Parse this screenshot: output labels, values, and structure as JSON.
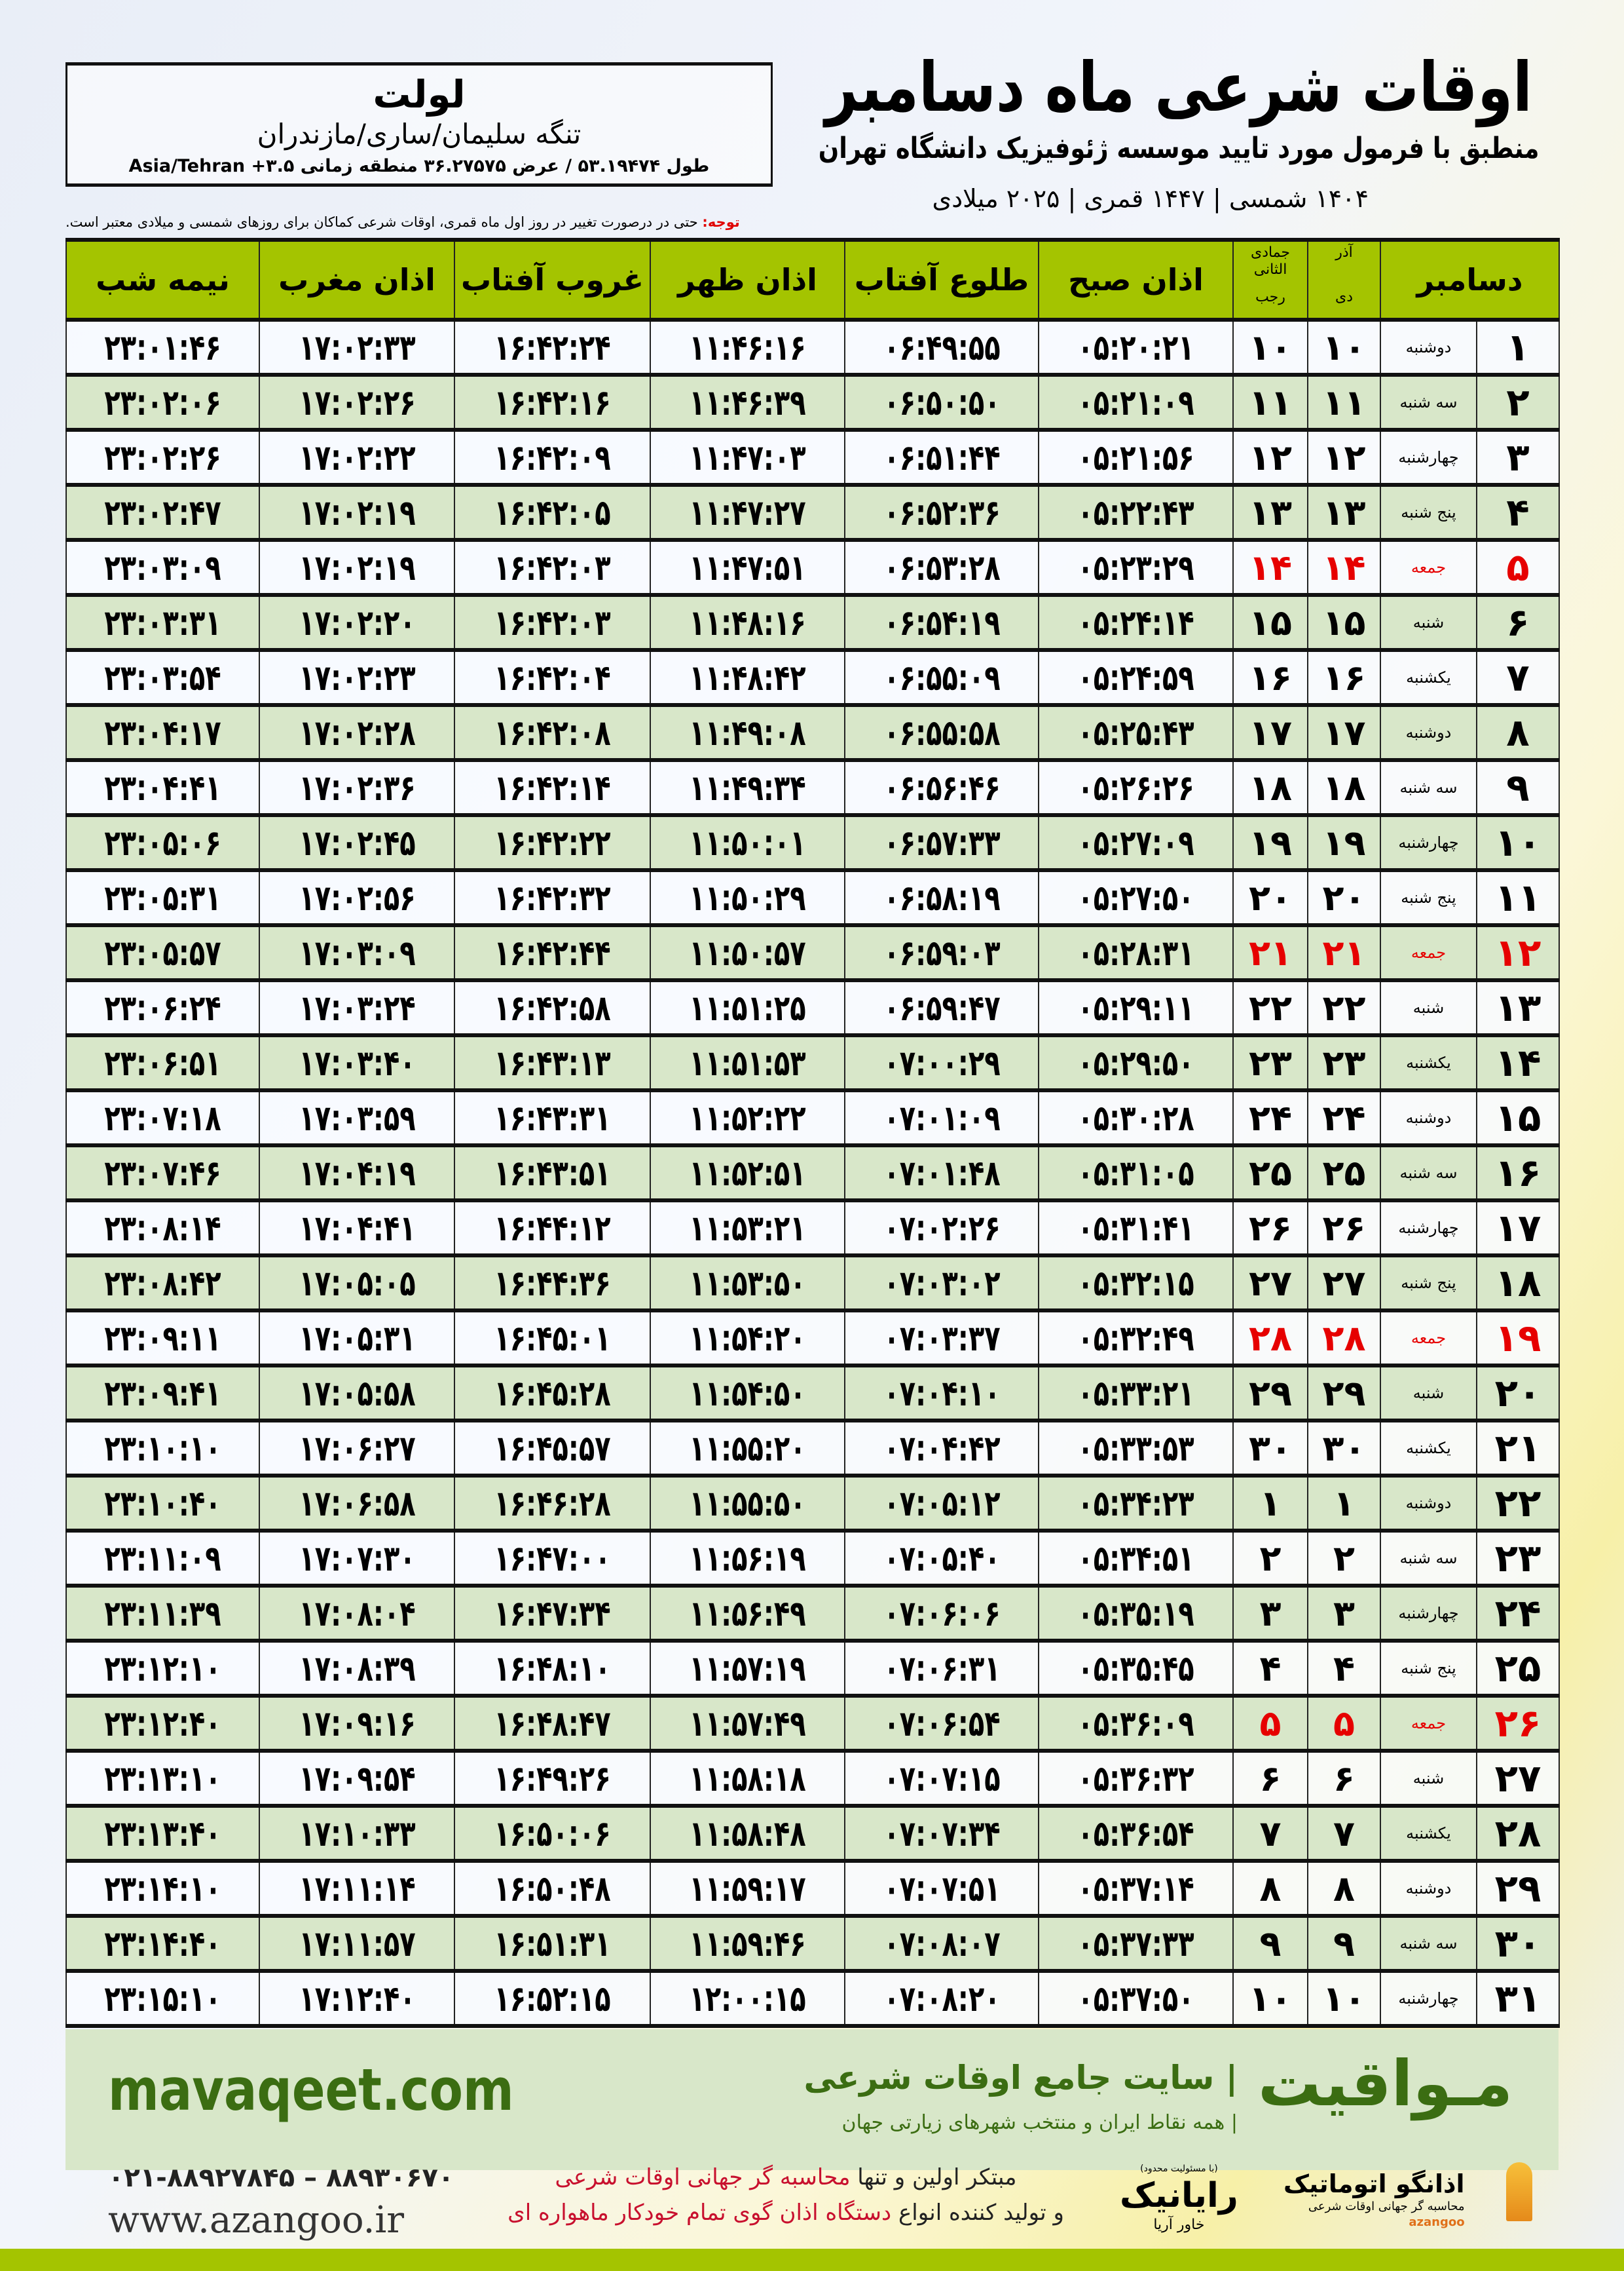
{
  "header": {
    "title": "اوقات شرعی ماه دسامبر",
    "subtitle": "منطبق با فرمول مورد تایید موسسه ژئوفیزیک دانشگاه تهران",
    "dateline": "۱۴۰۴ شمسی | ۱۴۴۷ قمری | ۲۰۲۵ میلادی"
  },
  "location": {
    "name": "لولت",
    "region": "تنگه سلیمان/ساری/مازندران",
    "coords": "طول ۵۳.۱۹۴۷۴ / عرض ۳۶.۲۷۵۷۵ منطقه زمانی Asia/Tehran +۳.۵"
  },
  "note": {
    "label": "توجه:",
    "text": " حتی در درصورت تغییر در روز اول ماه قمری، اوقات شرعی کماکان برای روزهای شمسی و میلادی معتبر است."
  },
  "colors": {
    "header_green": "#a4c400",
    "row_green": "#d8e7c9",
    "friday_red": "#e60000",
    "brand_green": "#3b6d12"
  },
  "table": {
    "columns": {
      "nimeh": "نیمه شب",
      "maghrib": "اذان مغرب",
      "ghorub": "غروب آفتاب",
      "zohr": "اذان ظهر",
      "tolu": "طلوع آفتاب",
      "sobh": "اذان صبح",
      "hijri_top": "جمادی الثانی",
      "hijri_bottom": "رجب",
      "shamsi_top": "آذر",
      "shamsi_bottom": "دی",
      "month": "دسامبر"
    },
    "rows": [
      {
        "d": "۱",
        "w": "دوشنبه",
        "sh": "۱۰",
        "hj": "۱۰",
        "sobh": "۰۵:۲۰:۲۱",
        "tolu": "۰۶:۴۹:۵۵",
        "zohr": "۱۱:۴۶:۱۶",
        "ghorub": "۱۶:۴۲:۲۴",
        "maghrib": "۱۷:۰۲:۳۳",
        "nimeh": "۲۳:۰۱:۴۶",
        "fri": false
      },
      {
        "d": "۲",
        "w": "سه شنبه",
        "sh": "۱۱",
        "hj": "۱۱",
        "sobh": "۰۵:۲۱:۰۹",
        "tolu": "۰۶:۵۰:۵۰",
        "zohr": "۱۱:۴۶:۳۹",
        "ghorub": "۱۶:۴۲:۱۶",
        "maghrib": "۱۷:۰۲:۲۶",
        "nimeh": "۲۳:۰۲:۰۶",
        "fri": false
      },
      {
        "d": "۳",
        "w": "چهارشنبه",
        "sh": "۱۲",
        "hj": "۱۲",
        "sobh": "۰۵:۲۱:۵۶",
        "tolu": "۰۶:۵۱:۴۴",
        "zohr": "۱۱:۴۷:۰۳",
        "ghorub": "۱۶:۴۲:۰۹",
        "maghrib": "۱۷:۰۲:۲۲",
        "nimeh": "۲۳:۰۲:۲۶",
        "fri": false
      },
      {
        "d": "۴",
        "w": "پنج شنبه",
        "sh": "۱۳",
        "hj": "۱۳",
        "sobh": "۰۵:۲۲:۴۳",
        "tolu": "۰۶:۵۲:۳۶",
        "zohr": "۱۱:۴۷:۲۷",
        "ghorub": "۱۶:۴۲:۰۵",
        "maghrib": "۱۷:۰۲:۱۹",
        "nimeh": "۲۳:۰۲:۴۷",
        "fri": false
      },
      {
        "d": "۵",
        "w": "جمعه",
        "sh": "۱۴",
        "hj": "۱۴",
        "sobh": "۰۵:۲۳:۲۹",
        "tolu": "۰۶:۵۳:۲۸",
        "zohr": "۱۱:۴۷:۵۱",
        "ghorub": "۱۶:۴۲:۰۳",
        "maghrib": "۱۷:۰۲:۱۹",
        "nimeh": "۲۳:۰۳:۰۹",
        "fri": true
      },
      {
        "d": "۶",
        "w": "شنبه",
        "sh": "۱۵",
        "hj": "۱۵",
        "sobh": "۰۵:۲۴:۱۴",
        "tolu": "۰۶:۵۴:۱۹",
        "zohr": "۱۱:۴۸:۱۶",
        "ghorub": "۱۶:۴۲:۰۳",
        "maghrib": "۱۷:۰۲:۲۰",
        "nimeh": "۲۳:۰۳:۳۱",
        "fri": false
      },
      {
        "d": "۷",
        "w": "یکشنبه",
        "sh": "۱۶",
        "hj": "۱۶",
        "sobh": "۰۵:۲۴:۵۹",
        "tolu": "۰۶:۵۵:۰۹",
        "zohr": "۱۱:۴۸:۴۲",
        "ghorub": "۱۶:۴۲:۰۴",
        "maghrib": "۱۷:۰۲:۲۳",
        "nimeh": "۲۳:۰۳:۵۴",
        "fri": false
      },
      {
        "d": "۸",
        "w": "دوشنبه",
        "sh": "۱۷",
        "hj": "۱۷",
        "sobh": "۰۵:۲۵:۴۳",
        "tolu": "۰۶:۵۵:۵۸",
        "zohr": "۱۱:۴۹:۰۸",
        "ghorub": "۱۶:۴۲:۰۸",
        "maghrib": "۱۷:۰۲:۲۸",
        "nimeh": "۲۳:۰۴:۱۷",
        "fri": false
      },
      {
        "d": "۹",
        "w": "سه شنبه",
        "sh": "۱۸",
        "hj": "۱۸",
        "sobh": "۰۵:۲۶:۲۶",
        "tolu": "۰۶:۵۶:۴۶",
        "zohr": "۱۱:۴۹:۳۴",
        "ghorub": "۱۶:۴۲:۱۴",
        "maghrib": "۱۷:۰۲:۳۶",
        "nimeh": "۲۳:۰۴:۴۱",
        "fri": false
      },
      {
        "d": "۱۰",
        "w": "چهارشنبه",
        "sh": "۱۹",
        "hj": "۱۹",
        "sobh": "۰۵:۲۷:۰۹",
        "tolu": "۰۶:۵۷:۳۳",
        "zohr": "۱۱:۵۰:۰۱",
        "ghorub": "۱۶:۴۲:۲۲",
        "maghrib": "۱۷:۰۲:۴۵",
        "nimeh": "۲۳:۰۵:۰۶",
        "fri": false
      },
      {
        "d": "۱۱",
        "w": "پنج شنبه",
        "sh": "۲۰",
        "hj": "۲۰",
        "sobh": "۰۵:۲۷:۵۰",
        "tolu": "۰۶:۵۸:۱۹",
        "zohr": "۱۱:۵۰:۲۹",
        "ghorub": "۱۶:۴۲:۳۲",
        "maghrib": "۱۷:۰۲:۵۶",
        "nimeh": "۲۳:۰۵:۳۱",
        "fri": false
      },
      {
        "d": "۱۲",
        "w": "جمعه",
        "sh": "۲۱",
        "hj": "۲۱",
        "sobh": "۰۵:۲۸:۳۱",
        "tolu": "۰۶:۵۹:۰۳",
        "zohr": "۱۱:۵۰:۵۷",
        "ghorub": "۱۶:۴۲:۴۴",
        "maghrib": "۱۷:۰۳:۰۹",
        "nimeh": "۲۳:۰۵:۵۷",
        "fri": true
      },
      {
        "d": "۱۳",
        "w": "شنبه",
        "sh": "۲۲",
        "hj": "۲۲",
        "sobh": "۰۵:۲۹:۱۱",
        "tolu": "۰۶:۵۹:۴۷",
        "zohr": "۱۱:۵۱:۲۵",
        "ghorub": "۱۶:۴۲:۵۸",
        "maghrib": "۱۷:۰۳:۲۴",
        "nimeh": "۲۳:۰۶:۲۴",
        "fri": false
      },
      {
        "d": "۱۴",
        "w": "یکشنبه",
        "sh": "۲۳",
        "hj": "۲۳",
        "sobh": "۰۵:۲۹:۵۰",
        "tolu": "۰۷:۰۰:۲۹",
        "zohr": "۱۱:۵۱:۵۳",
        "ghorub": "۱۶:۴۳:۱۳",
        "maghrib": "۱۷:۰۳:۴۰",
        "nimeh": "۲۳:۰۶:۵۱",
        "fri": false
      },
      {
        "d": "۱۵",
        "w": "دوشنبه",
        "sh": "۲۴",
        "hj": "۲۴",
        "sobh": "۰۵:۳۰:۲۸",
        "tolu": "۰۷:۰۱:۰۹",
        "zohr": "۱۱:۵۲:۲۲",
        "ghorub": "۱۶:۴۳:۳۱",
        "maghrib": "۱۷:۰۳:۵۹",
        "nimeh": "۲۳:۰۷:۱۸",
        "fri": false
      },
      {
        "d": "۱۶",
        "w": "سه شنبه",
        "sh": "۲۵",
        "hj": "۲۵",
        "sobh": "۰۵:۳۱:۰۵",
        "tolu": "۰۷:۰۱:۴۸",
        "zohr": "۱۱:۵۲:۵۱",
        "ghorub": "۱۶:۴۳:۵۱",
        "maghrib": "۱۷:۰۴:۱۹",
        "nimeh": "۲۳:۰۷:۴۶",
        "fri": false
      },
      {
        "d": "۱۷",
        "w": "چهارشنبه",
        "sh": "۲۶",
        "hj": "۲۶",
        "sobh": "۰۵:۳۱:۴۱",
        "tolu": "۰۷:۰۲:۲۶",
        "zohr": "۱۱:۵۳:۲۱",
        "ghorub": "۱۶:۴۴:۱۲",
        "maghrib": "۱۷:۰۴:۴۱",
        "nimeh": "۲۳:۰۸:۱۴",
        "fri": false
      },
      {
        "d": "۱۸",
        "w": "پنج شنبه",
        "sh": "۲۷",
        "hj": "۲۷",
        "sobh": "۰۵:۳۲:۱۵",
        "tolu": "۰۷:۰۳:۰۲",
        "zohr": "۱۱:۵۳:۵۰",
        "ghorub": "۱۶:۴۴:۳۶",
        "maghrib": "۱۷:۰۵:۰۵",
        "nimeh": "۲۳:۰۸:۴۲",
        "fri": false
      },
      {
        "d": "۱۹",
        "w": "جمعه",
        "sh": "۲۸",
        "hj": "۲۸",
        "sobh": "۰۵:۳۲:۴۹",
        "tolu": "۰۷:۰۳:۳۷",
        "zohr": "۱۱:۵۴:۲۰",
        "ghorub": "۱۶:۴۵:۰۱",
        "maghrib": "۱۷:۰۵:۳۱",
        "nimeh": "۲۳:۰۹:۱۱",
        "fri": true
      },
      {
        "d": "۲۰",
        "w": "شنبه",
        "sh": "۲۹",
        "hj": "۲۹",
        "sobh": "۰۵:۳۳:۲۱",
        "tolu": "۰۷:۰۴:۱۰",
        "zohr": "۱۱:۵۴:۵۰",
        "ghorub": "۱۶:۴۵:۲۸",
        "maghrib": "۱۷:۰۵:۵۸",
        "nimeh": "۲۳:۰۹:۴۱",
        "fri": false
      },
      {
        "d": "۲۱",
        "w": "یکشنبه",
        "sh": "۳۰",
        "hj": "۳۰",
        "sobh": "۰۵:۳۳:۵۳",
        "tolu": "۰۷:۰۴:۴۲",
        "zohr": "۱۱:۵۵:۲۰",
        "ghorub": "۱۶:۴۵:۵۷",
        "maghrib": "۱۷:۰۶:۲۷",
        "nimeh": "۲۳:۱۰:۱۰",
        "fri": false
      },
      {
        "d": "۲۲",
        "w": "دوشنبه",
        "sh": "۱",
        "hj": "۱",
        "sobh": "۰۵:۳۴:۲۳",
        "tolu": "۰۷:۰۵:۱۲",
        "zohr": "۱۱:۵۵:۵۰",
        "ghorub": "۱۶:۴۶:۲۸",
        "maghrib": "۱۷:۰۶:۵۸",
        "nimeh": "۲۳:۱۰:۴۰",
        "fri": false
      },
      {
        "d": "۲۳",
        "w": "سه شنبه",
        "sh": "۲",
        "hj": "۲",
        "sobh": "۰۵:۳۴:۵۱",
        "tolu": "۰۷:۰۵:۴۰",
        "zohr": "۱۱:۵۶:۱۹",
        "ghorub": "۱۶:۴۷:۰۰",
        "maghrib": "۱۷:۰۷:۳۰",
        "nimeh": "۲۳:۱۱:۰۹",
        "fri": false
      },
      {
        "d": "۲۴",
        "w": "چهارشنبه",
        "sh": "۳",
        "hj": "۳",
        "sobh": "۰۵:۳۵:۱۹",
        "tolu": "۰۷:۰۶:۰۶",
        "zohr": "۱۱:۵۶:۴۹",
        "ghorub": "۱۶:۴۷:۳۴",
        "maghrib": "۱۷:۰۸:۰۴",
        "nimeh": "۲۳:۱۱:۳۹",
        "fri": false
      },
      {
        "d": "۲۵",
        "w": "پنج شنبه",
        "sh": "۴",
        "hj": "۴",
        "sobh": "۰۵:۳۵:۴۵",
        "tolu": "۰۷:۰۶:۳۱",
        "zohr": "۱۱:۵۷:۱۹",
        "ghorub": "۱۶:۴۸:۱۰",
        "maghrib": "۱۷:۰۸:۳۹",
        "nimeh": "۲۳:۱۲:۱۰",
        "fri": false
      },
      {
        "d": "۲۶",
        "w": "جمعه",
        "sh": "۵",
        "hj": "۵",
        "sobh": "۰۵:۳۶:۰۹",
        "tolu": "۰۷:۰۶:۵۴",
        "zohr": "۱۱:۵۷:۴۹",
        "ghorub": "۱۶:۴۸:۴۷",
        "maghrib": "۱۷:۰۹:۱۶",
        "nimeh": "۲۳:۱۲:۴۰",
        "fri": true
      },
      {
        "d": "۲۷",
        "w": "شنبه",
        "sh": "۶",
        "hj": "۶",
        "sobh": "۰۵:۳۶:۳۲",
        "tolu": "۰۷:۰۷:۱۵",
        "zohr": "۱۱:۵۸:۱۸",
        "ghorub": "۱۶:۴۹:۲۶",
        "maghrib": "۱۷:۰۹:۵۴",
        "nimeh": "۲۳:۱۳:۱۰",
        "fri": false
      },
      {
        "d": "۲۸",
        "w": "یکشنبه",
        "sh": "۷",
        "hj": "۷",
        "sobh": "۰۵:۳۶:۵۴",
        "tolu": "۰۷:۰۷:۳۴",
        "zohr": "۱۱:۵۸:۴۸",
        "ghorub": "۱۶:۵۰:۰۶",
        "maghrib": "۱۷:۱۰:۳۳",
        "nimeh": "۲۳:۱۳:۴۰",
        "fri": false
      },
      {
        "d": "۲۹",
        "w": "دوشنبه",
        "sh": "۸",
        "hj": "۸",
        "sobh": "۰۵:۳۷:۱۴",
        "tolu": "۰۷:۰۷:۵۱",
        "zohr": "۱۱:۵۹:۱۷",
        "ghorub": "۱۶:۵۰:۴۸",
        "maghrib": "۱۷:۱۱:۱۴",
        "nimeh": "۲۳:۱۴:۱۰",
        "fri": false
      },
      {
        "d": "۳۰",
        "w": "سه شنبه",
        "sh": "۹",
        "hj": "۹",
        "sobh": "۰۵:۳۷:۳۳",
        "tolu": "۰۷:۰۸:۰۷",
        "zohr": "۱۱:۵۹:۴۶",
        "ghorub": "۱۶:۵۱:۳۱",
        "maghrib": "۱۷:۱۱:۵۷",
        "nimeh": "۲۳:۱۴:۴۰",
        "fri": false
      },
      {
        "d": "۳۱",
        "w": "چهارشنبه",
        "sh": "۱۰",
        "hj": "۱۰",
        "sobh": "۰۵:۳۷:۵۰",
        "tolu": "۰۷:۰۸:۲۰",
        "zohr": "۱۲:۰۰:۱۵",
        "ghorub": "۱۶:۵۲:۱۵",
        "maghrib": "۱۷:۱۲:۴۰",
        "nimeh": "۲۳:۱۵:۱۰",
        "fri": false
      }
    ]
  },
  "footer": {
    "site": "mavaqeet.com",
    "brand": "مـواقیت",
    "brand_tagline": "| سایت جامع اوقات شرعی",
    "brand_sub": "| همه نقاط ایران و منتخب شهرهای زیارتی جهان",
    "phone": "۰۲۱-۸۸۹۲۷۸۴۵ – ۸۸۹۳۰۶۷۰",
    "web": "www.azangoo.ir",
    "promo_line1_a": "مبتکر اولین و تنها ",
    "promo_line1_b": "محاسبه گر جهانی اوقات شرعی",
    "promo_line2_a": "و تولید کننده انواع ",
    "promo_line2_b": "دستگاه اذان گوی تمام خودکار ماهواره ای",
    "rayanik_ltd": "(با مسئولیت محدود)",
    "rayanik_name": "رایانیک",
    "rayanik_sub": "خاور آریا",
    "azangoo_name": "اذانگو اتوماتیک",
    "azangoo_sub": "محاسبه گر جهانی اوقات شرعی",
    "azangoo_en": "azangoo"
  }
}
